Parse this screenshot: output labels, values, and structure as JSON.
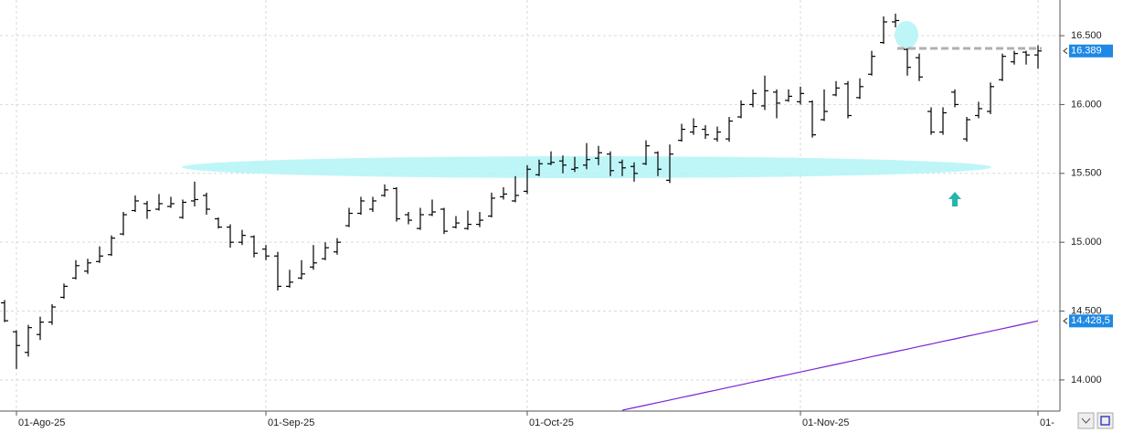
{
  "chart_data": {
    "type": "ohlc",
    "categories": [
      null,
      "01-Ago-25",
      null,
      null,
      null,
      null,
      null,
      null,
      null,
      null,
      null,
      null,
      null,
      null,
      null,
      null,
      null,
      null,
      null,
      null,
      null,
      null,
      "01-Sep-25",
      null,
      null,
      null,
      null,
      null,
      null,
      null,
      null,
      null,
      null,
      null,
      null,
      null,
      null,
      null,
      null,
      null,
      null,
      null,
      null,
      null,
      "01-Oct-25",
      null,
      null,
      null,
      null,
      null,
      null,
      null,
      null,
      null,
      null,
      null,
      null,
      null,
      null,
      null,
      null,
      null,
      null,
      null,
      null,
      null,
      null,
      "01-Nov-25",
      null,
      null,
      null,
      null,
      null,
      null,
      null,
      null,
      null,
      null,
      null,
      null,
      null,
      null,
      null,
      null,
      null,
      null,
      null,
      "01-"
    ],
    "ohlc": [
      [
        14560,
        14580,
        14420,
        14430
      ],
      [
        14350,
        14360,
        14080,
        14250
      ],
      [
        14200,
        14400,
        14170,
        14380
      ],
      [
        14330,
        14460,
        14290,
        14420
      ],
      [
        14420,
        14550,
        14400,
        14530
      ],
      [
        14600,
        14700,
        14590,
        14680
      ],
      [
        14740,
        14870,
        14730,
        14830
      ],
      [
        14790,
        14880,
        14770,
        14850
      ],
      [
        14860,
        14970,
        14850,
        14900
      ],
      [
        14910,
        15050,
        14900,
        15030
      ],
      [
        15060,
        15220,
        15050,
        15200
      ],
      [
        15230,
        15340,
        15220,
        15300
      ],
      [
        15280,
        15300,
        15170,
        15230
      ],
      [
        15240,
        15350,
        15230,
        15280
      ],
      [
        15260,
        15330,
        15250,
        15280
      ],
      [
        15180,
        15310,
        15170,
        15290
      ],
      [
        15300,
        15440,
        15260,
        15310
      ],
      [
        15340,
        15360,
        15200,
        15240
      ],
      [
        15170,
        15180,
        15100,
        15110
      ],
      [
        15110,
        15130,
        14960,
        15000
      ],
      [
        15000,
        15090,
        14980,
        15050
      ],
      [
        15040,
        15050,
        14890,
        14920
      ],
      [
        14950,
        14980,
        14870,
        14900
      ],
      [
        14900,
        14930,
        14650,
        14680
      ],
      [
        14680,
        14800,
        14670,
        14710
      ],
      [
        14740,
        14870,
        14730,
        14770
      ],
      [
        14820,
        14980,
        14800,
        14850
      ],
      [
        14880,
        15000,
        14870,
        14960
      ],
      [
        14930,
        15030,
        14910,
        15000
      ],
      [
        15120,
        15250,
        15110,
        15210
      ],
      [
        15210,
        15330,
        15200,
        15300
      ],
      [
        15240,
        15330,
        15220,
        15300
      ],
      [
        15340,
        15420,
        15330,
        15380
      ],
      [
        15390,
        15400,
        15150,
        15170
      ],
      [
        15200,
        15220,
        15130,
        15160
      ],
      [
        15100,
        15250,
        15090,
        15200
      ],
      [
        15200,
        15310,
        15190,
        15220
      ],
      [
        15240,
        15250,
        15060,
        15080
      ],
      [
        15110,
        15190,
        15100,
        15140
      ],
      [
        15100,
        15230,
        15090,
        15130
      ],
      [
        15130,
        15220,
        15110,
        15160
      ],
      [
        15190,
        15360,
        15180,
        15320
      ],
      [
        15330,
        15400,
        15310,
        15350
      ],
      [
        15300,
        15480,
        15290,
        15340
      ],
      [
        15370,
        15560,
        15350,
        15530
      ],
      [
        15490,
        15600,
        15480,
        15570
      ],
      [
        15570,
        15660,
        15560,
        15580
      ],
      [
        15590,
        15630,
        15500,
        15560
      ],
      [
        15530,
        15620,
        15510,
        15540
      ],
      [
        15560,
        15720,
        15530,
        15600
      ],
      [
        15610,
        15700,
        15560,
        15650
      ],
      [
        15640,
        15660,
        15480,
        15520
      ],
      [
        15580,
        15600,
        15480,
        15540
      ],
      [
        15550,
        15580,
        15440,
        15500
      ],
      [
        15570,
        15740,
        15560,
        15700
      ],
      [
        15650,
        15660,
        15480,
        15530
      ],
      [
        15450,
        15710,
        15430,
        15640
      ],
      [
        15740,
        15860,
        15730,
        15820
      ],
      [
        15800,
        15900,
        15780,
        15840
      ],
      [
        15820,
        15850,
        15750,
        15780
      ],
      [
        15750,
        15840,
        15730,
        15800
      ],
      [
        15750,
        15910,
        15730,
        15880
      ],
      [
        15910,
        16030,
        15900,
        16000
      ],
      [
        16000,
        16110,
        15980,
        16080
      ],
      [
        15990,
        16210,
        15960,
        16100
      ],
      [
        16090,
        16110,
        15900,
        16010
      ],
      [
        16030,
        16110,
        16020,
        16060
      ],
      [
        16020,
        16130,
        16000,
        16080
      ],
      [
        16020,
        16030,
        15760,
        15780
      ],
      [
        15890,
        16110,
        15880,
        15950
      ],
      [
        16070,
        16170,
        16060,
        16120
      ],
      [
        16150,
        16170,
        15900,
        15920
      ],
      [
        16050,
        16190,
        16040,
        16130
      ],
      [
        16220,
        16390,
        16210,
        16350
      ],
      [
        16450,
        16640,
        16440,
        16600
      ],
      [
        16600,
        16660,
        16560,
        16610
      ],
      [
        16400,
        16410,
        16210,
        16270
      ],
      [
        16340,
        16370,
        16170,
        16200
      ],
      [
        15950,
        15980,
        15780,
        15800
      ],
      [
        15800,
        15980,
        15780,
        15940
      ],
      [
        16090,
        16110,
        15980,
        16000
      ],
      [
        15750,
        15910,
        15730,
        15890
      ],
      [
        15920,
        16020,
        15900,
        15970
      ],
      [
        15950,
        16160,
        15930,
        16130
      ],
      [
        16180,
        16370,
        16170,
        16350
      ],
      [
        16310,
        16390,
        16290,
        16370
      ],
      [
        16380,
        16390,
        16290,
        16360
      ],
      [
        16360,
        16430,
        16260,
        16389
      ]
    ],
    "bar_color": "#000000",
    "moving_average": {
      "color": "#7a22d4",
      "values": [
        null,
        null,
        null,
        null,
        null,
        null,
        null,
        null,
        null,
        null,
        null,
        null,
        null,
        null,
        null,
        null,
        null,
        null,
        null,
        null,
        null,
        null,
        null,
        null,
        null,
        null,
        null,
        null,
        null,
        null,
        null,
        null,
        null,
        null,
        null,
        null,
        null,
        null,
        null,
        null,
        null,
        null,
        null,
        null,
        null,
        null,
        null,
        null,
        null,
        null,
        null,
        null,
        13780,
        13799,
        13817,
        13836,
        13854,
        13873,
        13891,
        13910,
        13928,
        13947,
        13965,
        13984,
        14002,
        14021,
        14039,
        14058,
        14076,
        14095,
        14113,
        14132,
        14150,
        14169,
        14187,
        14206,
        14224,
        14243,
        14261,
        14280,
        14298,
        14317,
        14335,
        14354,
        14372,
        14391,
        14410,
        14428.5
      ]
    },
    "ylim": [
      13774,
      16759
    ],
    "yticks": [
      {
        "value": 14000,
        "label": "14.000"
      },
      {
        "value": 14500,
        "label": "14.500"
      },
      {
        "value": 15000,
        "label": "15.000"
      },
      {
        "value": 15500,
        "label": "15.500"
      },
      {
        "value": 16000,
        "label": "16.000"
      },
      {
        "value": 16500,
        "label": "16.500"
      }
    ],
    "grid": true,
    "last_price": {
      "value": 16389,
      "label": "16.389"
    },
    "ma_last": {
      "value": 14428.5,
      "label": "14.428,5"
    }
  }
}
